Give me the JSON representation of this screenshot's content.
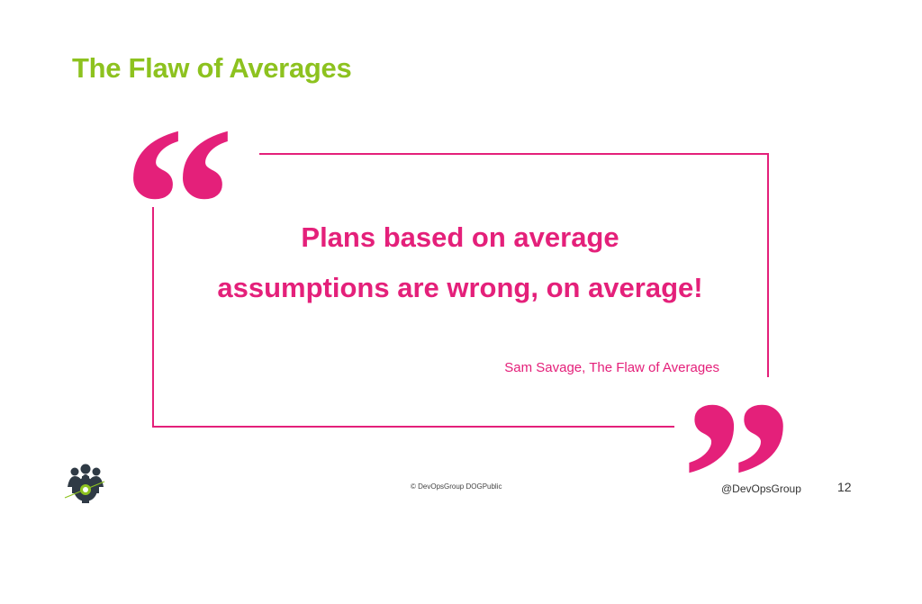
{
  "slide": {
    "title": "The Flaw of Averages",
    "quote_line1": "Plans based on average",
    "quote_line2": "assumptions are wrong, on average!",
    "attribution": "Sam Savage, The Flaw of Averages",
    "open_quote": "“",
    "close_quote": "”"
  },
  "footer": {
    "copyright": "© DevOpsGroup DOGPublic",
    "handle": "@DevOpsGroup",
    "page_number": "12"
  },
  "colors": {
    "title": "#8dc21f",
    "accent": "#e4207a",
    "logo": "#2f3a45"
  },
  "icons": {
    "logo": "devopsgroup-gear-team-logo"
  }
}
